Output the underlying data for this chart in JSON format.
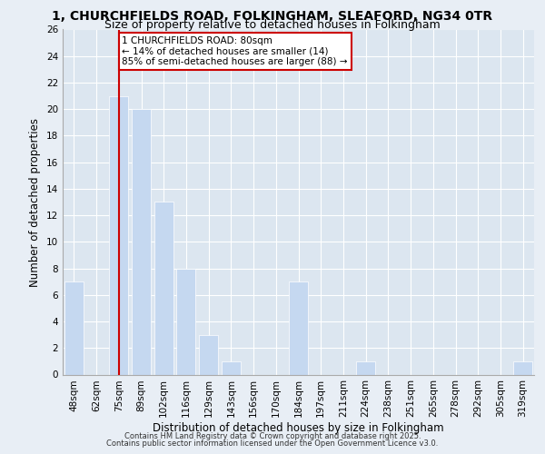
{
  "title_line1": "1, CHURCHFIELDS ROAD, FOLKINGHAM, SLEAFORD, NG34 0TR",
  "title_line2": "Size of property relative to detached houses in Folkingham",
  "xlabel": "Distribution of detached houses by size in Folkingham",
  "ylabel": "Number of detached properties",
  "categories": [
    "48sqm",
    "62sqm",
    "75sqm",
    "89sqm",
    "102sqm",
    "116sqm",
    "129sqm",
    "143sqm",
    "156sqm",
    "170sqm",
    "184sqm",
    "197sqm",
    "211sqm",
    "224sqm",
    "238sqm",
    "251sqm",
    "265sqm",
    "278sqm",
    "292sqm",
    "305sqm",
    "319sqm"
  ],
  "values": [
    7,
    0,
    21,
    20,
    13,
    8,
    3,
    1,
    0,
    0,
    7,
    0,
    0,
    1,
    0,
    0,
    0,
    0,
    0,
    0,
    1
  ],
  "bar_color": "#c5d8f0",
  "redline_x": 2,
  "annotation_box_text": "1 CHURCHFIELDS ROAD: 80sqm\n← 14% of detached houses are smaller (14)\n85% of semi-detached houses are larger (88) →",
  "annotation_box_color": "#cc0000",
  "footer_line1": "Contains HM Land Registry data © Crown copyright and database right 2025.",
  "footer_line2": "Contains public sector information licensed under the Open Government Licence v3.0.",
  "ylim": [
    0,
    26
  ],
  "yticks": [
    0,
    2,
    4,
    6,
    8,
    10,
    12,
    14,
    16,
    18,
    20,
    22,
    24,
    26
  ],
  "background_color": "#e8eef5",
  "plot_background": "#dce6f0",
  "grid_color": "#ffffff",
  "title_fontsize": 10,
  "subtitle_fontsize": 9,
  "label_fontsize": 8.5,
  "tick_fontsize": 7.5,
  "footer_fontsize": 6.0
}
